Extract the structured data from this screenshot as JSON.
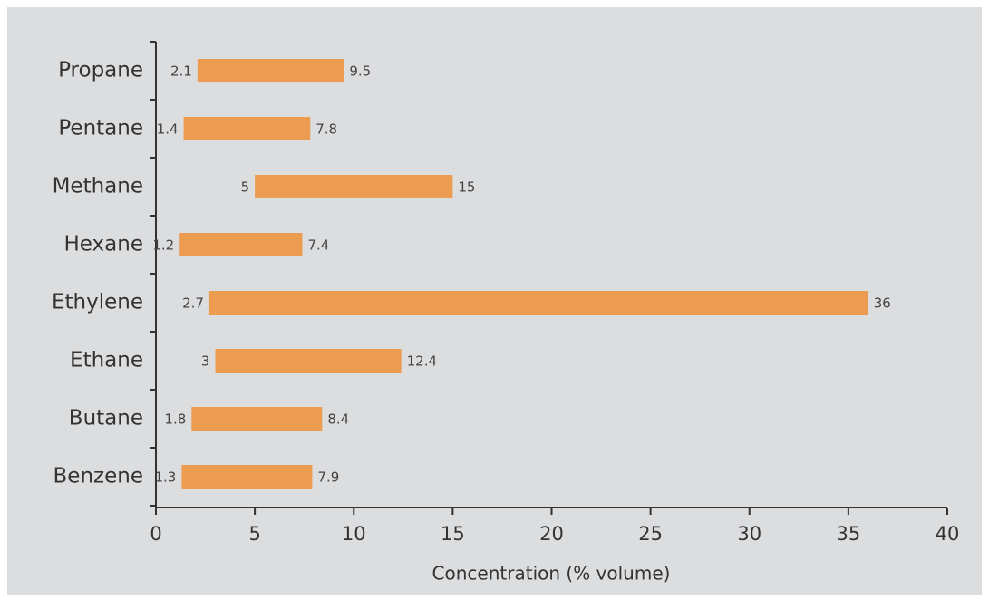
{
  "chart_data": {
    "type": "bar",
    "categories": [
      "Propane",
      "Pentane",
      "Methane",
      "Hexane",
      "Ethylene",
      "Ethane",
      "Butane",
      "Benzene"
    ],
    "low": [
      2.1,
      1.4,
      5,
      1.2,
      2.7,
      3,
      1.8,
      1.3
    ],
    "high": [
      9.5,
      7.8,
      15,
      7.4,
      36,
      12.4,
      8.4,
      7.9
    ],
    "color": "#ec9c50",
    "xlabel": "Concentration (% volume)",
    "xlim": [
      0,
      40
    ],
    "xticks": [
      0,
      5,
      10,
      15,
      20,
      25,
      30,
      35,
      40
    ]
  }
}
